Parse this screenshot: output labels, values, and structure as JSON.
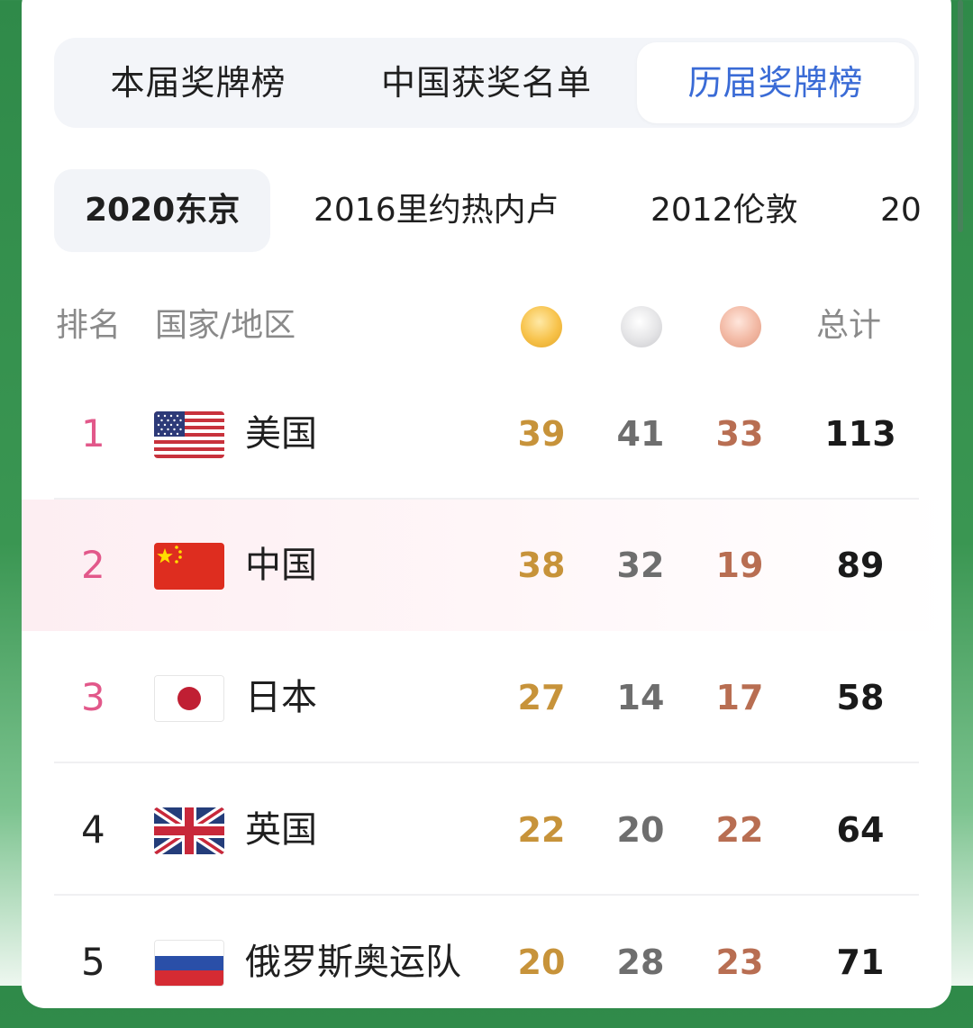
{
  "tabs": [
    {
      "label": "本届奖牌榜",
      "active": false
    },
    {
      "label": "中国获奖名单",
      "active": false
    },
    {
      "label": "历届奖牌榜",
      "active": true
    }
  ],
  "years": [
    {
      "label": "2020东京",
      "active": true
    },
    {
      "label": "2016里约热内卢",
      "active": false
    },
    {
      "label": "2012伦敦",
      "active": false
    },
    {
      "label": "20",
      "active": false
    }
  ],
  "header": {
    "rank": "排名",
    "country": "国家/地区",
    "gold_icon": "gold-medal-icon",
    "silver_icon": "silver-medal-icon",
    "bronze_icon": "bronze-medal-icon",
    "total": "总计"
  },
  "rows": [
    {
      "rank": "1",
      "country": "美国",
      "flag": "usa-flag-icon",
      "gold": "39",
      "silver": "41",
      "bronze": "33",
      "total": "113"
    },
    {
      "rank": "2",
      "country": "中国",
      "flag": "china-flag-icon",
      "gold": "38",
      "silver": "32",
      "bronze": "19",
      "total": "89"
    },
    {
      "rank": "3",
      "country": "日本",
      "flag": "japan-flag-icon",
      "gold": "27",
      "silver": "14",
      "bronze": "17",
      "total": "58"
    },
    {
      "rank": "4",
      "country": "英国",
      "flag": "uk-flag-icon",
      "gold": "22",
      "silver": "20",
      "bronze": "22",
      "total": "64"
    },
    {
      "rank": "5",
      "country": "俄罗斯奥运队",
      "flag": "russia-flag-icon",
      "gold": "20",
      "silver": "28",
      "bronze": "23",
      "total": "71"
    }
  ],
  "colors": {
    "active_tab": "#3a6bd6",
    "rank_top3": "#e2588a",
    "gold": "#c7933a",
    "silver": "#6e6e6e",
    "bronze": "#b86e52",
    "highlight_row": "#fdeef2"
  }
}
